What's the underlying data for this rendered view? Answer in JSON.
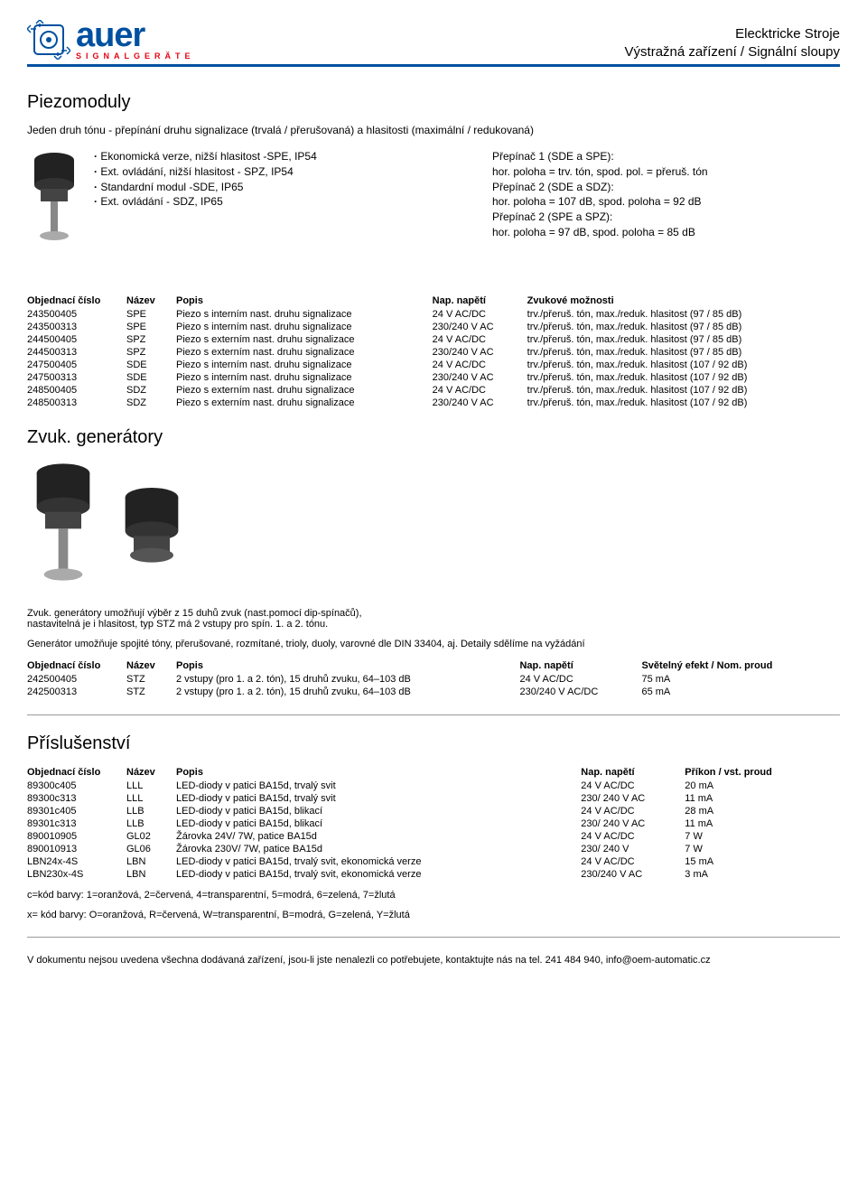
{
  "header": {
    "logo_main": "auer",
    "logo_sub": "SIGNALGERÄTE",
    "right_line1": "Elecktricke Stroje",
    "right_line2": "Výstražná zařízení / Signální sloupy",
    "logo_color_main": "#0050a0",
    "logo_color_sub": "#e30613"
  },
  "piezo": {
    "title": "Piezomoduly",
    "intro": "Jeden druh tónu - přepínání druhu signalizace (trvalá / přerušovaná) a hlasitosti (maximální / redukovaná)",
    "bullets": [
      "Ekonomická verze, nižší hlasitost -SPE, IP54",
      "Ext. ovládání, nižší hlasitost - SPZ, IP54",
      "Standardní modul -SDE, IP65",
      "Ext. ovládání - SDZ, IP65"
    ],
    "switch_lines": [
      "Přepínač 1 (SDE a SPE):",
      "hor. poloha = trv. tón, spod. pol. = přeruš. tón",
      "Přepínač 2 (SDE a SDZ):",
      "hor. poloha = 107 dB, spod. poloha = 92 dB",
      "Přepínač 2 (SPE a SPZ):",
      "hor. poloha = 97 dB, spod. poloha = 85 dB"
    ],
    "table": {
      "headers": [
        "Objednací číslo",
        "Název",
        "Popis",
        "Nap. napětí",
        "Zvukové možnosti"
      ],
      "col_widths": [
        "110px",
        "55px",
        "auto",
        "105px",
        "auto"
      ],
      "rows": [
        [
          "243500405",
          "SPE",
          "Piezo s interním nast. druhu signalizace",
          "24 V AC/DC",
          "trv./přeruš. tón, max./reduk. hlasitost (97 / 85 dB)"
        ],
        [
          "243500313",
          "SPE",
          "Piezo s interním nast. druhu signalizace",
          "230/240 V AC",
          "trv./přeruš. tón, max./reduk. hlasitost (97 / 85 dB)"
        ],
        [
          "244500405",
          "SPZ",
          "Piezo s externím nast. druhu signalizace",
          "24 V AC/DC",
          "trv./přeruš. tón, max./reduk. hlasitost (97 / 85 dB)"
        ],
        [
          "244500313",
          "SPZ",
          "Piezo s externím nast. druhu signalizace",
          "230/240 V AC",
          "trv./přeruš. tón, max./reduk. hlasitost (97 / 85 dB)"
        ],
        [
          "247500405",
          "SDE",
          "Piezo s interním nast. druhu signalizace",
          "24 V AC/DC",
          "trv./přeruš. tón, max./reduk. hlasitost (107 / 92 dB)"
        ],
        [
          "247500313",
          "SDE",
          "Piezo s interním nast. druhu signalizace",
          "230/240 V AC",
          "trv./přeruš. tón, max./reduk. hlasitost (107 / 92 dB)"
        ],
        [
          "248500405",
          "SDZ",
          "Piezo s externím nast. druhu signalizace",
          "24 V AC/DC",
          "trv./přeruš. tón, max./reduk. hlasitost (107 / 92 dB)"
        ],
        [
          "248500313",
          "SDZ",
          "Piezo s externím nast. druhu signalizace",
          "230/240 V AC",
          "trv./přeruš. tón, max./reduk. hlasitost (107 / 92 dB)"
        ]
      ]
    }
  },
  "generators": {
    "title": "Zvuk. generátory",
    "intro1": "Zvuk. generátory umožňují výběr z 15 duhů zvuk (nast.pomocí dip-spínačů),",
    "intro2": "nastavitelná je i hlasitost, typ STZ má 2 vstupy pro spín. 1. a 2. tónu.",
    "desc": "Generátor umožňuje spojité tóny, přerušované, rozmítané, trioly, duoly, varovné dle DIN 33404, aj. Detaily sdělíme na vyžádání",
    "table": {
      "headers": [
        "Objednací číslo",
        "Název",
        "Popis",
        "Nap. napětí",
        "Světelný efekt / Nom. proud"
      ],
      "col_widths": [
        "110px",
        "55px",
        "auto",
        "135px",
        "auto"
      ],
      "rows": [
        [
          "242500405",
          "STZ",
          "2 vstupy (pro 1. a 2. tón), 15 druhů zvuku, 64–103 dB",
          "24 V AC/DC",
          "75 mA"
        ],
        [
          "242500313",
          "STZ",
          "2 vstupy (pro 1. a 2. tón), 15 druhů zvuku, 64–103 dB",
          "230/240 V AC/DC",
          "65 mA"
        ]
      ]
    }
  },
  "accessories": {
    "title": "Příslušenství",
    "table": {
      "headers": [
        "Objednací číslo",
        "Název",
        "Popis",
        "Nap. napětí",
        "Příkon / vst. proud"
      ],
      "col_widths": [
        "110px",
        "55px",
        "auto",
        "115px",
        "auto"
      ],
      "rows": [
        [
          "89300c405",
          "LLL",
          "LED-diody v patici BA15d, trvalý svit",
          "24 V AC/DC",
          "20 mA"
        ],
        [
          "89300c313",
          "LLL",
          "LED-diody v patici BA15d, trvalý svit",
          "230/ 240 V AC",
          "11 mA"
        ],
        [
          "89301c405",
          "LLB",
          "LED-diody v patici BA15d, blikací",
          "24 V AC/DC",
          "28 mA"
        ],
        [
          "89301c313",
          "LLB",
          "LED-diody v patici BA15d, blikací",
          "230/ 240 V AC",
          "11 mA"
        ],
        [
          "890010905",
          "GL02",
          "Žárovka 24V/ 7W, patice BA15d",
          "24 V AC/DC",
          "7 W"
        ],
        [
          "890010913",
          "GL06",
          "Žárovka 230V/ 7W, patice BA15d",
          "230/ 240 V",
          "7 W"
        ],
        [
          "LBN24x-4S",
          "LBN",
          "LED-diody v patici BA15d, trvalý svit, ekonomická verze",
          "24 V AC/DC",
          "15 mA"
        ],
        [
          "LBN230x-4S",
          "LBN",
          "LED-diody v patici BA15d, trvalý svit, ekonomická verze",
          "230/240 V AC",
          "3 mA"
        ]
      ]
    },
    "legend1": "c=kód barvy: 1=oranžová, 2=červená, 4=transparentní, 5=modrá, 6=zelená, 7=žlutá",
    "legend2": "x= kód barvy: O=oranžová, R=červená, W=transparentní, B=modrá, G=zelená, Y=žlutá"
  },
  "footer": "V dokumentu nejsou uvedena všechna dodávaná zařízení, jsou-li jste nenalezli co potřebujete, kontaktujte nás na tel. 241 484 940, info@oem-automatic.cz"
}
